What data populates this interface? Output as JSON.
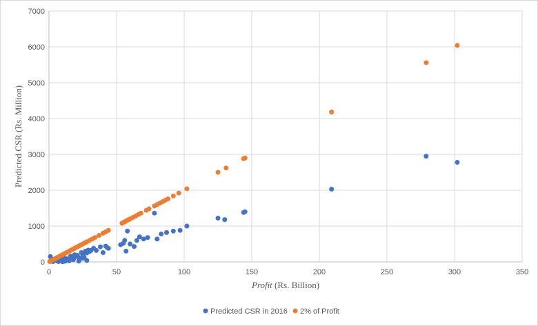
{
  "chart_data": {
    "type": "scatter",
    "title": "",
    "xlabel_italic": "Profit",
    "xlabel_rest": " (Rs. Billion)",
    "ylabel": "Predicted CSR (Rs. Million)",
    "xlim": [
      0,
      350
    ],
    "ylim": [
      0,
      7000
    ],
    "x_ticks": [
      0,
      50,
      100,
      150,
      200,
      250,
      300,
      350
    ],
    "y_ticks": [
      0,
      1000,
      2000,
      3000,
      4000,
      5000,
      6000,
      7000
    ],
    "grid": true,
    "legend_position": "bottom",
    "series": [
      {
        "name": "Predicted CSR in 2016",
        "color": "#4472c4",
        "x": [
          1,
          2,
          3,
          4,
          5,
          6,
          7,
          8,
          9,
          10,
          11,
          12,
          13,
          14,
          15,
          16,
          17,
          18,
          19,
          20,
          21,
          22,
          23,
          24,
          25,
          26,
          27,
          28,
          29,
          30,
          31,
          33,
          35,
          38,
          40,
          42,
          43,
          44,
          53,
          55,
          56,
          57,
          58,
          60,
          63,
          65,
          67,
          70,
          73,
          78,
          80,
          83,
          87,
          92,
          97,
          102,
          125,
          130,
          144,
          145,
          209,
          279,
          302,
          2,
          3,
          12,
          15,
          18,
          22,
          25,
          28
        ],
        "y": [
          150,
          60,
          20,
          40,
          80,
          30,
          10,
          60,
          100,
          5,
          120,
          20,
          90,
          50,
          40,
          160,
          110,
          70,
          200,
          150,
          180,
          120,
          90,
          260,
          200,
          130,
          300,
          250,
          330,
          290,
          320,
          380,
          320,
          420,
          260,
          440,
          400,
          380,
          480,
          520,
          600,
          300,
          860,
          500,
          430,
          600,
          700,
          640,
          680,
          1360,
          640,
          780,
          820,
          860,
          880,
          1000,
          1220,
          1180,
          1380,
          1400,
          2030,
          2950,
          2780,
          20,
          10,
          40,
          30,
          60,
          20,
          100,
          40
        ]
      },
      {
        "name": "2% of Profit",
        "color": "#ed7d31",
        "x": [
          0.5,
          1,
          1.5,
          2,
          2.5,
          3,
          3.5,
          4,
          4.5,
          5,
          6,
          7,
          8,
          9,
          10,
          11,
          12,
          13,
          14,
          15,
          16,
          17,
          18,
          19,
          20,
          21,
          22,
          23,
          24,
          25,
          26,
          27,
          28,
          30,
          32,
          34,
          37,
          40,
          42,
          44,
          54,
          55,
          56,
          57,
          58,
          59,
          60,
          62,
          64,
          66,
          68,
          72,
          74,
          78,
          80,
          82,
          84,
          86,
          88,
          92,
          96,
          102,
          125,
          131,
          144,
          145,
          209,
          279,
          302
        ],
        "y": [
          10,
          20,
          30,
          40,
          50,
          60,
          70,
          80,
          90,
          100,
          120,
          140,
          160,
          180,
          200,
          220,
          240,
          260,
          280,
          300,
          320,
          340,
          360,
          380,
          400,
          420,
          440,
          460,
          480,
          500,
          520,
          540,
          560,
          600,
          640,
          680,
          740,
          800,
          840,
          880,
          1080,
          1100,
          1120,
          1140,
          1160,
          1180,
          1200,
          1240,
          1280,
          1320,
          1360,
          1440,
          1480,
          1560,
          1600,
          1640,
          1680,
          1720,
          1760,
          1840,
          1920,
          2040,
          2500,
          2620,
          2880,
          2900,
          4180,
          5560,
          6040
        ]
      }
    ]
  }
}
